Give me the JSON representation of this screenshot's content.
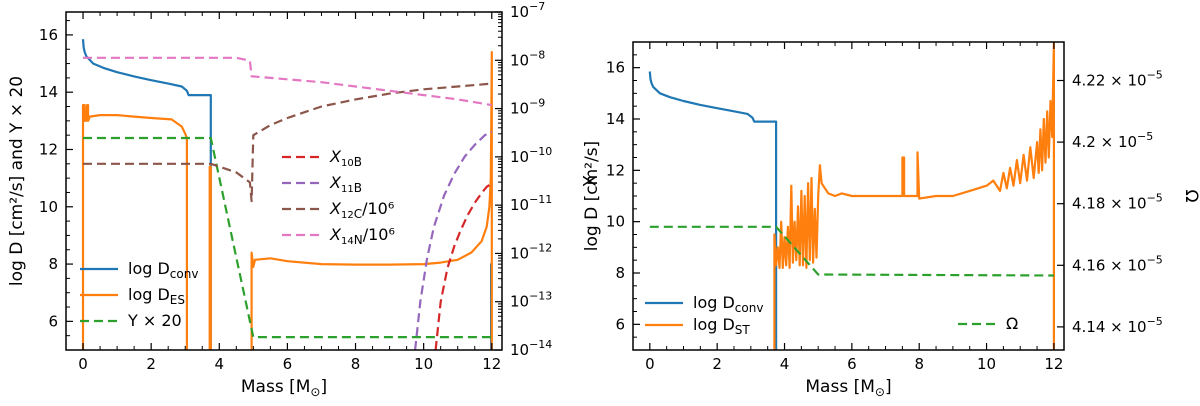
{
  "chart_data": [
    {
      "type": "line",
      "title": "",
      "xlabel": "Mass [M⊙]",
      "ylabel": "log D [cm²/s]  and  Y × 20",
      "y2label": "X",
      "xlim": [
        -0.5,
        12.3
      ],
      "ylim": [
        5.0,
        16.8
      ],
      "y2lim_log10": [
        -14,
        -7
      ],
      "xticks": [
        "0",
        "2",
        "4",
        "6",
        "8",
        "10",
        "12"
      ],
      "yticks": [
        "6",
        "8",
        "10",
        "12",
        "14",
        "16"
      ],
      "y2ticks": [
        "10⁻⁷",
        "10⁻⁸",
        "10⁻⁹",
        "10⁻¹⁰",
        "10⁻¹¹",
        "10⁻¹²",
        "10⁻¹³",
        "10⁻¹⁴"
      ],
      "series": [
        {
          "name": "log D_conv",
          "label_main": "log D",
          "label_sub": "conv",
          "color": "#1f77b4",
          "style": "solid",
          "axis": "left",
          "x": [
            0.0,
            0.02,
            0.05,
            0.1,
            0.3,
            0.6,
            1.0,
            1.5,
            2.0,
            2.5,
            2.9,
            3.05,
            3.1,
            3.75,
            3.75
          ],
          "y": [
            15.85,
            15.55,
            15.4,
            15.25,
            15.0,
            14.85,
            14.7,
            14.55,
            14.42,
            14.3,
            14.2,
            14.05,
            13.9,
            13.9,
            5.0
          ]
        },
        {
          "name": "log D_conv (outer)",
          "legend": false,
          "color": "#1f77b4",
          "style": "solid",
          "axis": "left",
          "x": [
            11.98,
            11.98,
            12.0
          ],
          "y": [
            5.0,
            8.0,
            8.0
          ]
        },
        {
          "name": "log D_ES (core)",
          "legend": false,
          "color": "#ff7f0e",
          "style": "solid",
          "axis": "left",
          "x": [
            0.0,
            0.0,
            0.05,
            0.05,
            0.1,
            0.12,
            0.15,
            0.15,
            0.2,
            0.5,
            1.0,
            1.5,
            2.0,
            2.6,
            2.9,
            3.0,
            3.05,
            3.05
          ],
          "y": [
            5.0,
            13.55,
            13.55,
            13.0,
            13.0,
            13.55,
            13.55,
            13.0,
            13.15,
            13.2,
            13.2,
            13.15,
            13.1,
            13.05,
            12.8,
            12.55,
            12.4,
            5.0
          ]
        },
        {
          "name": "log D_ES",
          "label_main": "log D",
          "label_sub": "ES",
          "color": "#ff7f0e",
          "style": "solid",
          "axis": "left",
          "x": [
            3.72,
            3.72,
            3.75,
            3.75
          ],
          "y": [
            5.0,
            11.4,
            11.4,
            5.0
          ]
        },
        {
          "name": "log D_ES (envelope)",
          "legend": false,
          "color": "#ff7f0e",
          "style": "solid",
          "axis": "left",
          "x": [
            4.95,
            4.95,
            5.0,
            5.05,
            5.5,
            6.0,
            7.0,
            8.0,
            9.0,
            10.0,
            10.5,
            11.0,
            11.4,
            11.7,
            11.85,
            11.93,
            11.97,
            11.99,
            12.0,
            12.0
          ],
          "y": [
            5.0,
            8.4,
            7.9,
            8.15,
            8.2,
            8.1,
            8.0,
            7.98,
            7.98,
            8.0,
            8.05,
            8.15,
            8.4,
            8.8,
            9.3,
            10.0,
            11.0,
            13.5,
            15.4,
            5.0
          ]
        },
        {
          "name": "Y × 20",
          "label_main": "Y × 20",
          "label_sub": "",
          "color": "#2ca02c",
          "style": "dashed",
          "axis": "left",
          "x": [
            0.0,
            3.75,
            5.0,
            12.0
          ],
          "y": [
            12.4,
            12.4,
            5.45,
            5.45
          ]
        },
        {
          "name": "X_10B",
          "label_main": "X",
          "label_sup": "10",
          "label_el": "B",
          "label_tail": "",
          "color": "#d62728",
          "style": "dashed",
          "axis": "right",
          "x": [
            10.35,
            10.5,
            10.7,
            10.9,
            11.1,
            11.3,
            11.5,
            11.7,
            11.85,
            12.0
          ],
          "y": [
            -14.0,
            -13.0,
            -12.3,
            -11.85,
            -11.5,
            -11.2,
            -10.95,
            -10.75,
            -10.62,
            -10.55
          ]
        },
        {
          "name": "X_11B",
          "label_main": "X",
          "label_sup": "11",
          "label_el": "B",
          "label_tail": "",
          "color": "#9467bd",
          "style": "dashed",
          "axis": "right",
          "x": [
            9.75,
            9.9,
            10.1,
            10.3,
            10.6,
            10.9,
            11.2,
            11.5,
            11.8,
            12.0
          ],
          "y": [
            -14.0,
            -13.0,
            -12.1,
            -11.45,
            -10.8,
            -10.35,
            -10.0,
            -9.75,
            -9.55,
            -9.48
          ]
        },
        {
          "name": "X_12C/10^6",
          "label_main": "X",
          "label_sup": "12",
          "label_el": "C",
          "label_tail": "/10⁶",
          "color": "#8c564b",
          "style": "dashed",
          "axis": "left",
          "x": [
            0.0,
            3.0,
            3.75,
            4.5,
            4.9,
            4.95,
            5.0,
            5.5,
            6.0,
            7.0,
            8.0,
            9.0,
            10.0,
            11.0,
            12.0
          ],
          "y": [
            11.5,
            11.5,
            11.5,
            11.2,
            10.85,
            10.2,
            12.5,
            12.85,
            13.1,
            13.5,
            13.75,
            13.95,
            14.1,
            14.2,
            14.3
          ]
        },
        {
          "name": "X_14N/10^6",
          "label_main": "X",
          "label_sup": "14",
          "label_el": "N",
          "label_tail": "/10⁶",
          "color": "#e377c2",
          "style": "dashed",
          "axis": "left",
          "x": [
            0.0,
            3.75,
            4.5,
            4.9,
            4.95,
            5.0,
            6.0,
            7.0,
            8.0,
            9.0,
            10.0,
            11.0,
            12.0
          ],
          "y": [
            15.2,
            15.2,
            15.2,
            15.1,
            14.55,
            14.55,
            14.45,
            14.35,
            14.2,
            14.05,
            13.9,
            13.75,
            13.55
          ]
        }
      ]
    },
    {
      "type": "line",
      "title": "",
      "xlabel": "Mass [M⊙]",
      "ylabel": "log D [cm²/s]",
      "y2label": "Ω",
      "xlim": [
        -0.5,
        12.3
      ],
      "ylim": [
        5.0,
        17.0
      ],
      "y2lim": [
        4.1325e-05,
        4.2325e-05
      ],
      "y2ticks_values": [
        4.14e-05,
        4.16e-05,
        4.18e-05,
        4.2e-05,
        4.22e-05
      ],
      "xticks": [
        "0",
        "2",
        "4",
        "6",
        "8",
        "10",
        "12"
      ],
      "yticks": [
        "6",
        "8",
        "10",
        "12",
        "14",
        "16"
      ],
      "y2ticks": [
        "4.14 × 10⁻⁵",
        "4.16 × 10⁻⁵",
        "4.18 × 10⁻⁵",
        "4.2 × 10⁻⁵",
        "4.22 × 10⁻⁵"
      ],
      "series": [
        {
          "name": "log D_conv",
          "label_main": "log D",
          "label_sub": "conv",
          "color": "#1f77b4",
          "style": "solid",
          "axis": "left",
          "x": [
            0.0,
            0.02,
            0.05,
            0.1,
            0.3,
            0.6,
            1.0,
            1.5,
            2.0,
            2.5,
            2.9,
            3.05,
            3.1,
            3.75,
            3.75
          ],
          "y": [
            15.85,
            15.55,
            15.4,
            15.25,
            15.0,
            14.85,
            14.7,
            14.55,
            14.42,
            14.3,
            14.2,
            14.05,
            13.9,
            13.9,
            5.0
          ]
        },
        {
          "name": "log D_ST",
          "label_main": "log D",
          "label_sub": "ST",
          "color": "#ff7f0e",
          "style": "solid",
          "axis": "left",
          "x": [
            3.7,
            3.7,
            3.75,
            3.8,
            3.85,
            3.9,
            3.95,
            4.0,
            4.05,
            4.1,
            4.15,
            4.2,
            4.25,
            4.3,
            4.35,
            4.4,
            4.45,
            4.5,
            4.55,
            4.6,
            4.65,
            4.7,
            4.75,
            4.8,
            4.85,
            4.9,
            4.95,
            5.0,
            5.05,
            5.1,
            5.2,
            5.3,
            5.5,
            5.7,
            6.0,
            6.5,
            7.0,
            7.5,
            7.5,
            7.55,
            7.55,
            7.95,
            7.95,
            8.0,
            8.5,
            9.0,
            9.5,
            10.0,
            10.2,
            10.4,
            10.5,
            10.6,
            10.7,
            10.8,
            10.9,
            11.0,
            11.1,
            11.2,
            11.3,
            11.4,
            11.5,
            11.55,
            11.6,
            11.65,
            11.7,
            11.75,
            11.8,
            11.85,
            11.9,
            11.95,
            11.98,
            12.0,
            12.0
          ],
          "y": [
            5.0,
            9.5,
            8.3,
            9.0,
            8.2,
            10.0,
            8.2,
            9.4,
            8.3,
            9.8,
            8.2,
            11.4,
            8.4,
            10.0,
            8.5,
            10.6,
            8.3,
            11.2,
            8.3,
            11.0,
            8.2,
            11.5,
            8.5,
            11.7,
            8.4,
            10.5,
            8.6,
            11.0,
            12.2,
            11.5,
            11.3,
            11.1,
            11.0,
            11.1,
            11.0,
            11.0,
            11.0,
            11.0,
            12.5,
            12.5,
            11.0,
            11.0,
            12.7,
            10.9,
            11.0,
            11.0,
            11.2,
            11.4,
            11.6,
            11.2,
            11.9,
            11.3,
            12.1,
            11.4,
            12.4,
            11.5,
            12.6,
            11.6,
            12.9,
            11.7,
            13.1,
            11.9,
            13.6,
            12.0,
            14.0,
            12.3,
            14.3,
            12.5,
            14.7,
            13.3,
            15.5,
            17.0,
            5.0
          ]
        },
        {
          "name": "Ω",
          "label_main": "Ω",
          "label_sub": "",
          "color": "#2ca02c",
          "style": "dashed",
          "axis": "right",
          "x": [
            0.0,
            3.75,
            5.0,
            12.0
          ],
          "y": [
            4.1725e-05,
            4.1725e-05,
            4.157e-05,
            4.1567e-05
          ]
        }
      ]
    }
  ]
}
